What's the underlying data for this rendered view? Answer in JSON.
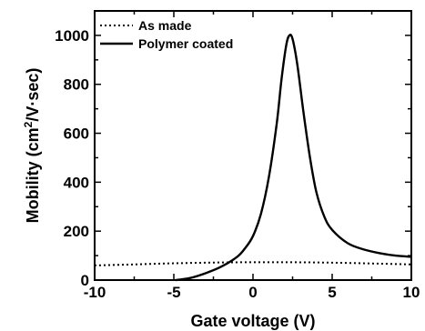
{
  "chart_data": {
    "type": "line",
    "xlabel": "Gate voltage (V)",
    "ylabel": {
      "prefix": "Mobility (cm",
      "sup": "2",
      "suffix": "/V·sec)"
    },
    "xlim": [
      -10,
      10
    ],
    "ylim": [
      0,
      1100
    ],
    "xticks": [
      -10,
      -5,
      0,
      5,
      10
    ],
    "xtick_labels": [
      "-10",
      "-5",
      "0",
      "5",
      "10"
    ],
    "yticks": [
      0,
      200,
      400,
      600,
      800,
      1000
    ],
    "ytick_labels": [
      "0",
      "200",
      "400",
      "600",
      "800",
      "1000"
    ],
    "grid": false,
    "legend_position": "top-left",
    "series": [
      {
        "name": "As made",
        "style": "dotted",
        "color": "#000000",
        "x": [
          -10,
          -8,
          -6,
          -4,
          -2,
          0,
          2,
          4,
          6,
          8,
          10
        ],
        "y": [
          60,
          63,
          67,
          70,
          72,
          73,
          73,
          72,
          70,
          67,
          64
        ]
      },
      {
        "name": "Polymer coated",
        "style": "solid",
        "color": "#000000",
        "x": [
          -4.9,
          -4,
          -3,
          -2,
          -1,
          -0.5,
          0,
          0.5,
          1,
          1.5,
          1.8,
          2.1,
          2.3,
          2.5,
          2.8,
          3.2,
          3.6,
          4,
          4.5,
          5,
          6,
          7,
          8,
          9,
          10
        ],
        "y": [
          0,
          8,
          28,
          55,
          95,
          130,
          180,
          270,
          420,
          640,
          820,
          960,
          1000,
          985,
          880,
          680,
          500,
          360,
          260,
          205,
          150,
          125,
          110,
          100,
          95
        ]
      }
    ]
  }
}
